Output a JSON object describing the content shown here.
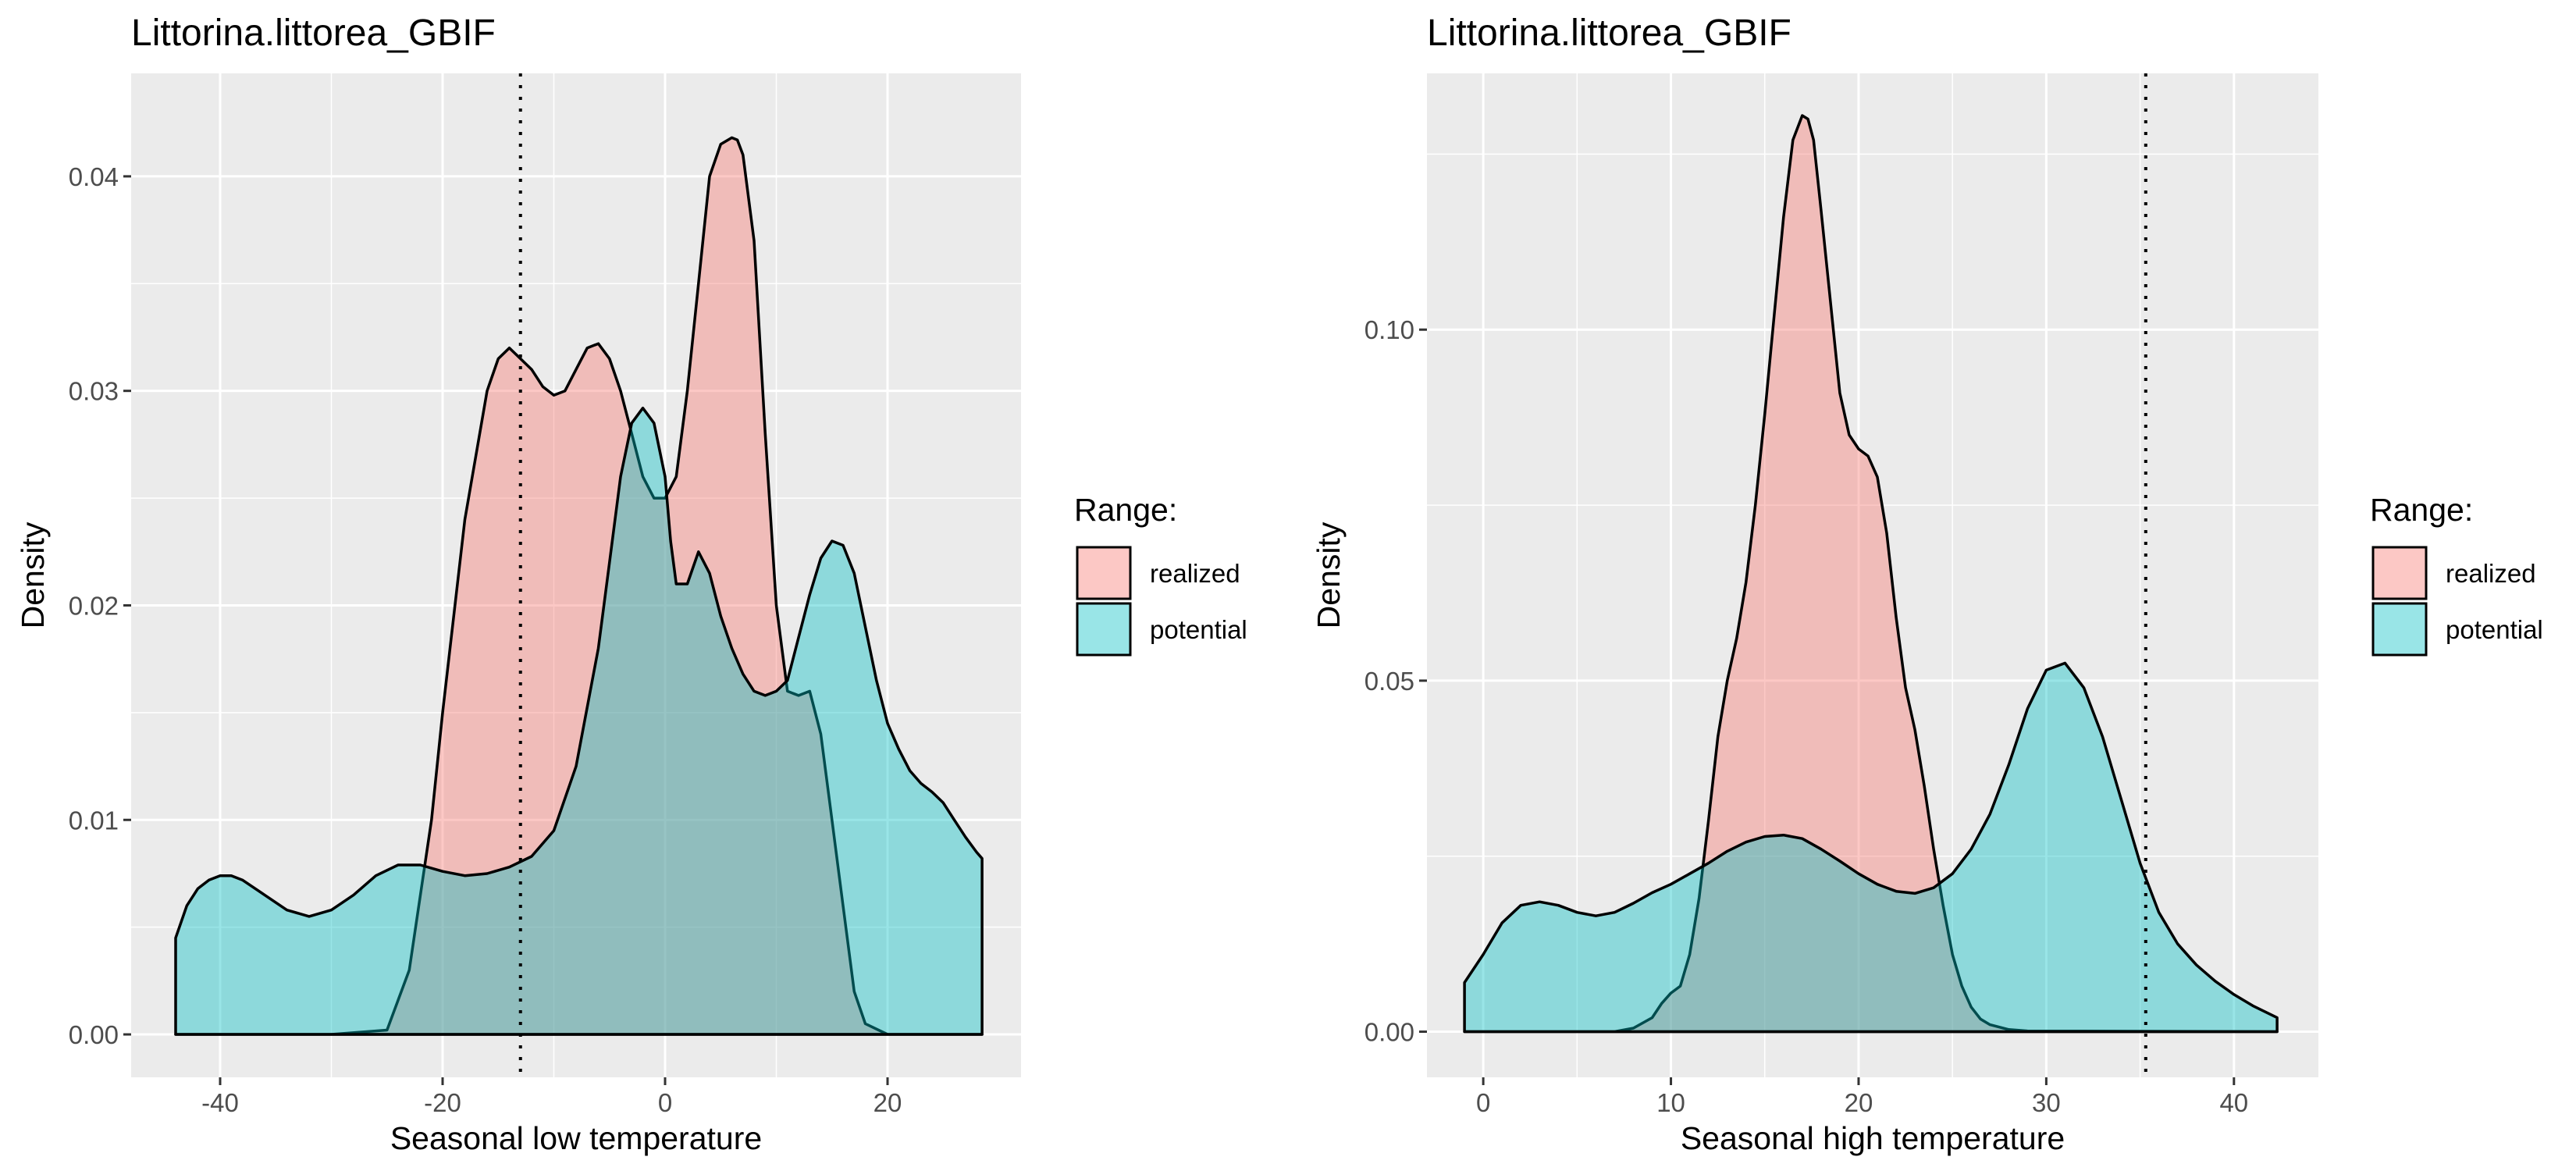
{
  "chart_data": [
    {
      "type": "area",
      "subtype": "density",
      "title": "Littorina.littorea_GBIF",
      "xlabel": "Seasonal low temperature",
      "ylabel": "Density",
      "xlim": [
        -48,
        32
      ],
      "ylim": [
        -0.002,
        0.0448
      ],
      "x_ticks": [
        -40,
        -20,
        0,
        20
      ],
      "x_tick_labels": [
        "-40",
        "-20",
        "0",
        "20"
      ],
      "y_ticks": [
        0.0,
        0.01,
        0.02,
        0.03,
        0.04
      ],
      "y_tick_labels": [
        "0.00",
        "0.01",
        "0.02",
        "0.03",
        "0.04"
      ],
      "grid": true,
      "reference_line": {
        "x": -13,
        "style": "dotted"
      },
      "legend": {
        "title": "Range:",
        "position": "right"
      },
      "series": [
        {
          "name": "realized",
          "color": "#F8766D",
          "x": [
            -44,
            -30,
            -25,
            -23,
            -21,
            -20,
            -18,
            -16,
            -15,
            -14,
            -13,
            -12,
            -11,
            -10,
            -9,
            -8,
            -7,
            -6,
            -5,
            -4,
            -3,
            -2,
            -1,
            0,
            1,
            2,
            3,
            4,
            5,
            6,
            6.5,
            7,
            8,
            9,
            10,
            11,
            12,
            13,
            14,
            15,
            16,
            17,
            18,
            20,
            28.5
          ],
          "values": [
            0,
            0,
            0.0002,
            0.003,
            0.01,
            0.015,
            0.024,
            0.03,
            0.0315,
            0.032,
            0.0315,
            0.031,
            0.0302,
            0.0298,
            0.03,
            0.031,
            0.032,
            0.0322,
            0.0315,
            0.03,
            0.028,
            0.026,
            0.025,
            0.025,
            0.026,
            0.03,
            0.035,
            0.04,
            0.0415,
            0.0418,
            0.0417,
            0.041,
            0.037,
            0.028,
            0.02,
            0.016,
            0.0158,
            0.016,
            0.014,
            0.01,
            0.006,
            0.002,
            0.0005,
            0,
            0
          ]
        },
        {
          "name": "potential",
          "color": "#00BFC4",
          "x": [
            -44,
            -43,
            -42,
            -41,
            -40,
            -39,
            -38,
            -36,
            -34,
            -32,
            -30,
            -28,
            -26,
            -24,
            -22,
            -20,
            -18,
            -16,
            -14,
            -12,
            -10,
            -8,
            -6,
            -5,
            -4,
            -3,
            -2,
            -1,
            0,
            0.5,
            1,
            2,
            3,
            4,
            5,
            6,
            7,
            8,
            9,
            10,
            11,
            12,
            13,
            14,
            15,
            16,
            17,
            18,
            19,
            20,
            21,
            22,
            23,
            24,
            25,
            26,
            27,
            28,
            28.5
          ],
          "values": [
            0.0045,
            0.006,
            0.0068,
            0.0072,
            0.0074,
            0.0074,
            0.0072,
            0.0065,
            0.0058,
            0.0055,
            0.0058,
            0.0065,
            0.0074,
            0.0079,
            0.0079,
            0.0076,
            0.0074,
            0.0075,
            0.0078,
            0.0083,
            0.0095,
            0.0125,
            0.018,
            0.022,
            0.026,
            0.0285,
            0.0292,
            0.0285,
            0.026,
            0.023,
            0.021,
            0.021,
            0.0225,
            0.0215,
            0.0195,
            0.018,
            0.0168,
            0.016,
            0.0158,
            0.016,
            0.0165,
            0.0185,
            0.0205,
            0.0222,
            0.023,
            0.0228,
            0.0215,
            0.019,
            0.0165,
            0.0145,
            0.0133,
            0.0123,
            0.0117,
            0.0113,
            0.0108,
            0.01,
            0.0092,
            0.0085,
            0.0082
          ]
        }
      ]
    },
    {
      "type": "area",
      "subtype": "density",
      "title": "Littorina.littorea_GBIF",
      "xlabel": "Seasonal high temperature",
      "ylabel": "Density",
      "xlim": [
        -3,
        44.5
      ],
      "ylim": [
        -0.0065,
        0.1365
      ],
      "x_ticks": [
        0,
        10,
        20,
        30,
        40
      ],
      "x_tick_labels": [
        "0",
        "10",
        "20",
        "30",
        "40"
      ],
      "y_ticks": [
        0.0,
        0.05,
        0.1
      ],
      "y_tick_labels": [
        "0.00",
        "0.05",
        "0.10"
      ],
      "grid": true,
      "reference_line": {
        "x": 35.3,
        "style": "dotted"
      },
      "legend": {
        "title": "Range:",
        "position": "right"
      },
      "series": [
        {
          "name": "realized",
          "color": "#F8766D",
          "x": [
            -1,
            7,
            8,
            9,
            9.5,
            10,
            10.5,
            11,
            11.5,
            12,
            12.5,
            13,
            13.5,
            14,
            14.5,
            15,
            15.5,
            16,
            16.5,
            17,
            17.3,
            17.6,
            18,
            18.5,
            19,
            19.5,
            20,
            20.5,
            21,
            21.5,
            22,
            22.5,
            23,
            23.5,
            24,
            24.5,
            25,
            25.5,
            26,
            26.5,
            27,
            28,
            29,
            42.3
          ],
          "values": [
            0,
            0,
            0.0005,
            0.002,
            0.004,
            0.0055,
            0.0065,
            0.011,
            0.019,
            0.03,
            0.042,
            0.05,
            0.056,
            0.064,
            0.075,
            0.088,
            0.102,
            0.116,
            0.127,
            0.1305,
            0.13,
            0.127,
            0.117,
            0.104,
            0.091,
            0.085,
            0.083,
            0.082,
            0.079,
            0.071,
            0.059,
            0.049,
            0.043,
            0.035,
            0.026,
            0.018,
            0.011,
            0.0065,
            0.0035,
            0.0018,
            0.001,
            0.0003,
            0.0001,
            0
          ]
        },
        {
          "name": "potential",
          "color": "#00BFC4",
          "x": [
            -1,
            0,
            1,
            2,
            3,
            4,
            5,
            6,
            7,
            8,
            9,
            10,
            11,
            12,
            13,
            14,
            15,
            16,
            17,
            18,
            19,
            20,
            21,
            22,
            23,
            24,
            25,
            26,
            27,
            28,
            29,
            30,
            31,
            32,
            33,
            34,
            35,
            36,
            37,
            38,
            39,
            40,
            41,
            42.3
          ],
          "values": [
            0.007,
            0.011,
            0.0155,
            0.018,
            0.0185,
            0.018,
            0.017,
            0.0165,
            0.017,
            0.0183,
            0.0198,
            0.021,
            0.0225,
            0.024,
            0.0257,
            0.027,
            0.0278,
            0.028,
            0.0275,
            0.026,
            0.0243,
            0.0225,
            0.021,
            0.02,
            0.0197,
            0.0205,
            0.0225,
            0.026,
            0.031,
            0.038,
            0.046,
            0.0515,
            0.0525,
            0.049,
            0.042,
            0.033,
            0.024,
            0.017,
            0.0125,
            0.0095,
            0.0072,
            0.0053,
            0.0037,
            0.002
          ]
        }
      ]
    }
  ]
}
